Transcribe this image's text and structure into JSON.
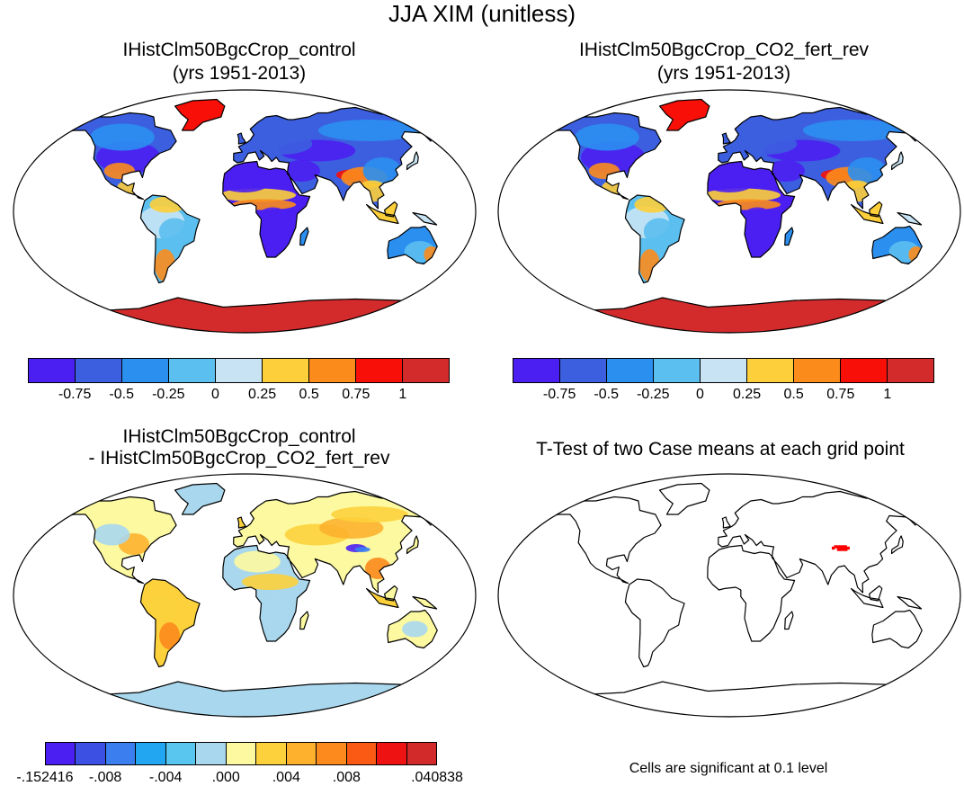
{
  "figure": {
    "title": "JJA XIM (unitless)"
  },
  "panels": [
    {
      "title_line1": "IHistClm50BgcCrop_control",
      "title_line2": "(yrs 1951-2013)",
      "kind": "field"
    },
    {
      "title_line1": "IHistClm50BgcCrop_CO2_fert_rev",
      "title_line2": "(yrs 1951-2013)",
      "kind": "field"
    },
    {
      "title_line1": "IHistClm50BgcCrop_control",
      "title_line2": "- IHistClm50BgcCrop_CO2_fert_rev",
      "kind": "diff"
    },
    {
      "title_line1": "T-Test of two Case means at each grid point",
      "title_line2": "",
      "kind": "ttest"
    }
  ],
  "colorbars": {
    "field": {
      "colors": [
        "#4b1ff2",
        "#3c5fe0",
        "#2b8ff0",
        "#5bbfef",
        "#c8e4f4",
        "#fdcf3a",
        "#fb8c1c",
        "#f80f08",
        "#d32b2b"
      ],
      "ticks": [
        "-0.75",
        "-0.5",
        "-0.25",
        "0",
        "0.25",
        "0.5",
        "0.75",
        "1"
      ]
    },
    "diff": {
      "colors": [
        "#4b1ff2",
        "#3c50e4",
        "#3a7ef0",
        "#22a6f2",
        "#58c6ee",
        "#a9d8ee",
        "#fdf9a0",
        "#fcd13c",
        "#fdb12d",
        "#fc8a1c",
        "#fa5a14",
        "#ee1212",
        "#d22a2a"
      ],
      "ticks": [
        "-.152416",
        "-.008",
        "-.004",
        ".000",
        ".004",
        ".008",
        ".040838"
      ]
    }
  },
  "ttest": {
    "note": "Cells are significant at 0.1 level",
    "significant_color": "#ff0000"
  },
  "map_colors": {
    "land_outline": "#000000",
    "ocean": "#ffffff"
  }
}
